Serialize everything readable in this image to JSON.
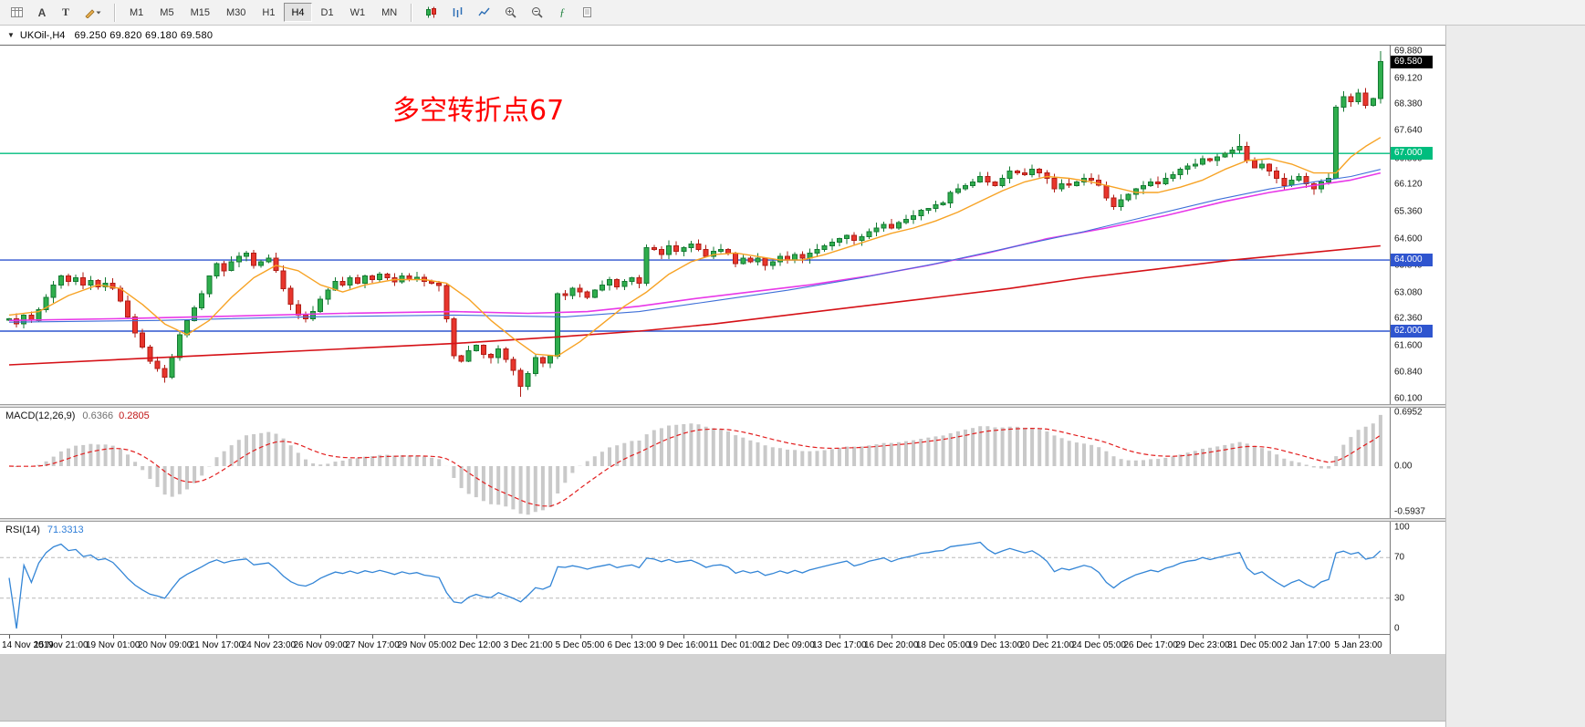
{
  "toolbar": {
    "left_icons": [
      "grid-icon",
      "cursor-a-icon",
      "text-tool-icon",
      "draw-tools-icon"
    ],
    "timeframes": [
      "M1",
      "M5",
      "M15",
      "M30",
      "H1",
      "H4",
      "D1",
      "W1",
      "MN"
    ],
    "active_timeframe": "H4",
    "right_icons": [
      "candles-chart-icon",
      "bar-chart-icon",
      "line-chart-icon",
      "zoom-in-icon",
      "zoom-out-icon",
      "indicators-icon",
      "templates-icon"
    ]
  },
  "chart": {
    "symbol_title": "UKOil-,H4",
    "ohlc_text": "69.250 69.820 69.180 69.580",
    "annotation": {
      "text": "多空转折点67",
      "color": "#ff0000"
    },
    "current_price_badge": {
      "text": "69.580",
      "bg": "#000000",
      "value": 69.58
    }
  },
  "chart_data": {
    "type": "candlestick",
    "symbol": "UKOil-",
    "timeframe": "H4",
    "quote": {
      "open": 69.25,
      "high": 69.82,
      "low": 69.18,
      "close": 69.58
    },
    "price_axis": {
      "min": 60.1,
      "max": 69.88,
      "labels": [
        "69.880",
        "69.120",
        "68.380",
        "67.640",
        "66.860",
        "66.120",
        "65.360",
        "64.600",
        "63.840",
        "63.080",
        "62.360",
        "61.600",
        "60.840",
        "60.100"
      ]
    },
    "first_open": 62.3,
    "closes": [
      62.35,
      62.2,
      62.45,
      62.3,
      62.6,
      62.95,
      63.3,
      63.55,
      63.4,
      63.5,
      63.3,
      63.42,
      63.25,
      63.35,
      63.2,
      62.85,
      62.4,
      61.95,
      61.55,
      61.15,
      60.95,
      60.7,
      61.25,
      61.9,
      62.3,
      62.65,
      63.05,
      63.55,
      63.9,
      63.7,
      63.95,
      64.1,
      64.2,
      63.85,
      63.95,
      64.05,
      63.7,
      63.2,
      62.75,
      62.45,
      62.35,
      62.55,
      62.9,
      63.15,
      63.4,
      63.3,
      63.5,
      63.35,
      63.55,
      63.45,
      63.6,
      63.5,
      63.38,
      63.55,
      63.45,
      63.52,
      63.4,
      63.35,
      63.28,
      62.35,
      61.3,
      61.15,
      61.45,
      61.6,
      61.35,
      61.25,
      61.5,
      61.2,
      60.9,
      60.45,
      60.8,
      61.25,
      61.1,
      61.3,
      63.05,
      63.0,
      63.2,
      63.1,
      62.95,
      63.15,
      63.3,
      63.45,
      63.25,
      63.4,
      63.5,
      63.35,
      64.35,
      64.3,
      64.15,
      64.4,
      64.25,
      64.35,
      64.45,
      64.3,
      64.1,
      64.25,
      64.3,
      64.2,
      63.9,
      64.05,
      63.95,
      64.05,
      63.85,
      63.95,
      64.1,
      64.0,
      64.15,
      64.05,
      64.2,
      64.3,
      64.4,
      64.5,
      64.6,
      64.7,
      64.55,
      64.65,
      64.8,
      64.9,
      65.0,
      64.9,
      65.05,
      65.15,
      65.25,
      65.4,
      65.45,
      65.55,
      65.6,
      65.9,
      66.0,
      66.1,
      66.2,
      66.35,
      66.2,
      66.1,
      66.3,
      66.5,
      66.45,
      66.4,
      66.55,
      66.45,
      66.3,
      66.0,
      66.15,
      66.1,
      66.2,
      66.3,
      66.25,
      66.1,
      65.75,
      65.5,
      65.7,
      65.85,
      66.0,
      66.1,
      66.2,
      66.15,
      66.3,
      66.4,
      66.55,
      66.65,
      66.7,
      66.85,
      66.8,
      66.9,
      67.0,
      67.1,
      67.2,
      66.8,
      66.6,
      66.7,
      66.5,
      66.3,
      66.1,
      66.25,
      66.35,
      66.15,
      66.0,
      66.2,
      66.3,
      68.3,
      68.6,
      68.45,
      68.7,
      68.35,
      68.55,
      69.58
    ],
    "wick_overrides": {
      "21": [
        null,
        60.55
      ],
      "69": [
        null,
        60.15
      ],
      "166": [
        67.55,
        null
      ],
      "185": [
        69.88,
        68.4
      ]
    },
    "candle_colors": {
      "up_fill": "#2fae4d",
      "up_stroke": "#157a33",
      "down_fill": "#e8352c",
      "down_stroke": "#b01d16"
    },
    "hlines": [
      {
        "value": 67.0,
        "color": "#00bd7e",
        "badge": "67.000"
      },
      {
        "value": 64.0,
        "color": "#2f55cf",
        "badge": "64.000"
      },
      {
        "value": 62.0,
        "color": "#2f55cf",
        "badge": "62.000"
      }
    ],
    "ma_lines": [
      {
        "name": "slow-ma-red",
        "color": "#d51117",
        "width": 1.6,
        "points": [
          [
            0,
            61.05
          ],
          [
            15,
            61.2
          ],
          [
            30,
            61.35
          ],
          [
            45,
            61.5
          ],
          [
            60,
            61.65
          ],
          [
            75,
            61.85
          ],
          [
            85,
            62.0
          ],
          [
            95,
            62.2
          ],
          [
            105,
            62.45
          ],
          [
            115,
            62.7
          ],
          [
            125,
            62.95
          ],
          [
            135,
            63.2
          ],
          [
            145,
            63.5
          ],
          [
            155,
            63.75
          ],
          [
            165,
            64.0
          ],
          [
            175,
            64.2
          ],
          [
            185,
            64.4
          ]
        ]
      },
      {
        "name": "mid-ma-magenta",
        "color": "#e838e8",
        "width": 1.6,
        "points": [
          [
            0,
            62.3
          ],
          [
            15,
            62.35
          ],
          [
            30,
            62.42
          ],
          [
            45,
            62.5
          ],
          [
            60,
            62.55
          ],
          [
            70,
            62.5
          ],
          [
            78,
            62.55
          ],
          [
            85,
            62.7
          ],
          [
            92,
            62.9
          ],
          [
            100,
            63.1
          ],
          [
            108,
            63.3
          ],
          [
            116,
            63.55
          ],
          [
            124,
            63.85
          ],
          [
            132,
            64.2
          ],
          [
            140,
            64.6
          ],
          [
            148,
            64.9
          ],
          [
            156,
            65.25
          ],
          [
            164,
            65.65
          ],
          [
            170,
            65.9
          ],
          [
            176,
            66.1
          ],
          [
            181,
            66.25
          ],
          [
            185,
            66.45
          ]
        ]
      },
      {
        "name": "mid-ma-blue",
        "color": "#3e6fd8",
        "width": 1.1,
        "points": [
          [
            0,
            62.25
          ],
          [
            20,
            62.3
          ],
          [
            40,
            62.4
          ],
          [
            60,
            62.45
          ],
          [
            75,
            62.4
          ],
          [
            85,
            62.55
          ],
          [
            95,
            62.85
          ],
          [
            105,
            63.15
          ],
          [
            115,
            63.5
          ],
          [
            125,
            63.9
          ],
          [
            135,
            64.35
          ],
          [
            145,
            64.8
          ],
          [
            155,
            65.3
          ],
          [
            163,
            65.7
          ],
          [
            170,
            66.0
          ],
          [
            176,
            66.2
          ],
          [
            181,
            66.35
          ],
          [
            185,
            66.55
          ]
        ]
      },
      {
        "name": "fast-ma-orange",
        "color": "#f7a325",
        "width": 1.4,
        "points": [
          [
            0,
            62.45
          ],
          [
            4,
            62.55
          ],
          [
            8,
            63.0
          ],
          [
            12,
            63.3
          ],
          [
            15,
            63.2
          ],
          [
            18,
            62.75
          ],
          [
            21,
            62.2
          ],
          [
            24,
            61.9
          ],
          [
            27,
            62.3
          ],
          [
            30,
            62.95
          ],
          [
            33,
            63.5
          ],
          [
            36,
            63.85
          ],
          [
            39,
            63.7
          ],
          [
            42,
            63.3
          ],
          [
            45,
            63.1
          ],
          [
            48,
            63.3
          ],
          [
            52,
            63.45
          ],
          [
            56,
            63.45
          ],
          [
            59,
            63.35
          ],
          [
            62,
            62.9
          ],
          [
            65,
            62.3
          ],
          [
            68,
            61.8
          ],
          [
            71,
            61.35
          ],
          [
            74,
            61.3
          ],
          [
            77,
            61.7
          ],
          [
            80,
            62.2
          ],
          [
            83,
            62.7
          ],
          [
            86,
            63.1
          ],
          [
            89,
            63.6
          ],
          [
            92,
            63.95
          ],
          [
            95,
            64.15
          ],
          [
            98,
            64.2
          ],
          [
            101,
            64.1
          ],
          [
            104,
            64.0
          ],
          [
            107,
            64.0
          ],
          [
            110,
            64.15
          ],
          [
            113,
            64.35
          ],
          [
            116,
            64.55
          ],
          [
            119,
            64.75
          ],
          [
            122,
            64.9
          ],
          [
            125,
            65.1
          ],
          [
            128,
            65.35
          ],
          [
            131,
            65.65
          ],
          [
            134,
            65.95
          ],
          [
            137,
            66.2
          ],
          [
            140,
            66.35
          ],
          [
            143,
            66.3
          ],
          [
            146,
            66.2
          ],
          [
            149,
            66.05
          ],
          [
            152,
            65.9
          ],
          [
            155,
            65.9
          ],
          [
            158,
            66.05
          ],
          [
            161,
            66.25
          ],
          [
            164,
            66.55
          ],
          [
            167,
            66.8
          ],
          [
            170,
            66.85
          ],
          [
            173,
            66.7
          ],
          [
            176,
            66.45
          ],
          [
            179,
            66.45
          ],
          [
            181,
            66.9
          ],
          [
            183,
            67.2
          ],
          [
            185,
            67.45
          ]
        ]
      }
    ],
    "time_labels": [
      "14 Nov 2019",
      "15 Nov 21:00",
      "19 Nov 01:00",
      "20 Nov 09:00",
      "21 Nov 17:00",
      "24 Nov 23:00",
      "26 Nov 09:00",
      "27 Nov 17:00",
      "29 Nov 05:00",
      "2 Dec 12:00",
      "3 Dec 21:00",
      "5 Dec 05:00",
      "6 Dec 13:00",
      "9 Dec 16:00",
      "11 Dec 01:00",
      "12 Dec 09:00",
      "13 Dec 17:00",
      "16 Dec 20:00",
      "18 Dec 05:00",
      "19 Dec 13:00",
      "20 Dec 21:00",
      "24 Dec 05:00",
      "26 Dec 17:00",
      "29 Dec 23:00",
      "31 Dec 05:00",
      "2 Jan 17:00",
      "5 Jan 23:00"
    ],
    "label_every_n_candles": 7,
    "macd": {
      "title": "MACD(12,26,9)",
      "main_text": "0.6366",
      "signal_text": "0.2805",
      "params": [
        12,
        26,
        9
      ],
      "axis_labels": [
        "0.6952",
        "0.00",
        "-0.5937"
      ],
      "hist_color": "#c9c9c9",
      "signal_color": "#e21e1e"
    },
    "rsi": {
      "title": "RSI(14)",
      "value_text": "71.3313",
      "period": 14,
      "axis_labels": [
        "100",
        "70",
        "30",
        "0"
      ],
      "levels": [
        70,
        30
      ],
      "line_color": "#3385d6",
      "level_color": "#b8b8b8"
    }
  }
}
